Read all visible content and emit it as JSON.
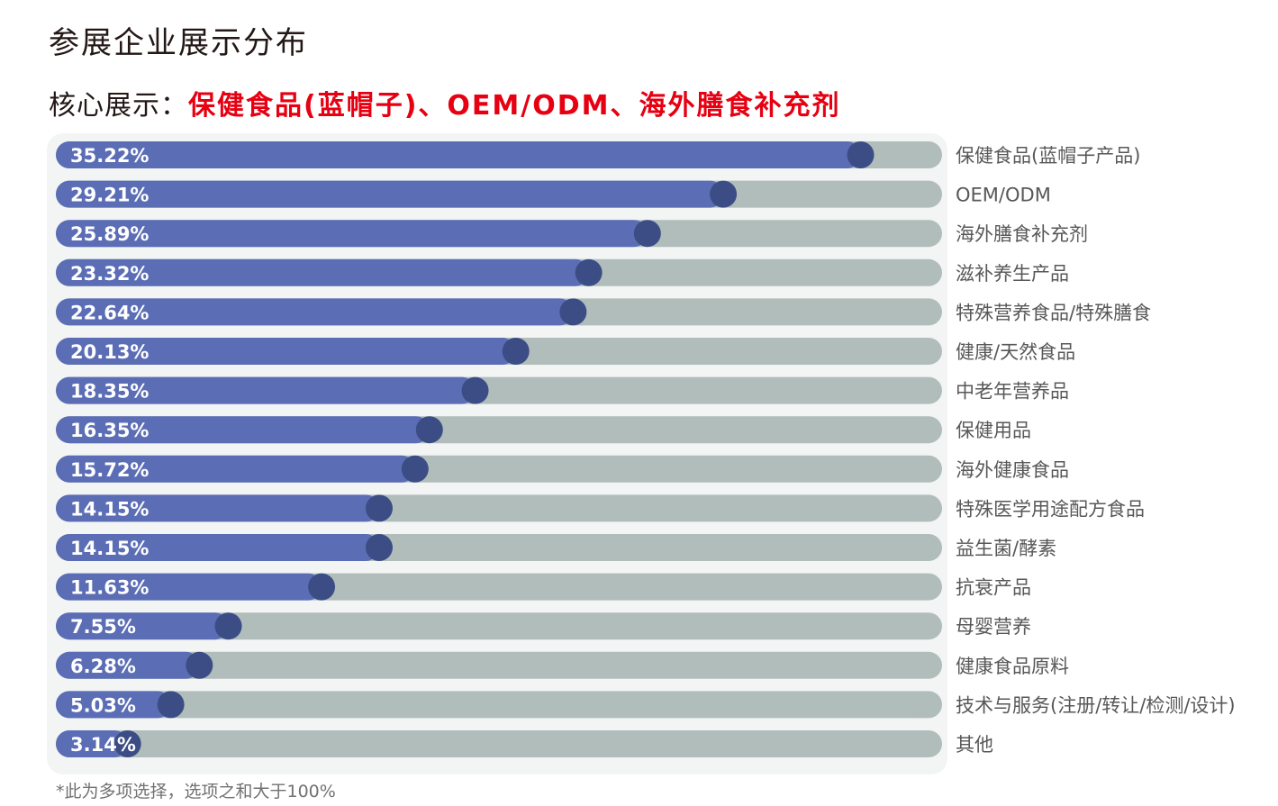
{
  "header": {
    "title": "参展企业展示分布",
    "core_label": "核心展示：",
    "core_items": "保健食品(蓝帽子)、OEM/ODM、海外膳食补充剂"
  },
  "footnote": "*此为多项选择，选项之和大于100%",
  "colors": {
    "bar_fill": "#5b6db5",
    "bar_track": "#b1bdbb",
    "knob": "#3c4d86",
    "highlight": "#e60012"
  },
  "chart_data": {
    "type": "bar",
    "orientation": "horizontal",
    "unit": "%",
    "xlim": [
      0,
      40
    ],
    "categories": [
      "保健食品(蓝帽子产品)",
      "OEM/ODM",
      "海外膳食补充剂",
      "滋补养生产品",
      "特殊营养食品/特殊膳食",
      "健康/天然食品",
      "中老年营养品",
      "保健用品",
      "海外健康食品",
      "特殊医学用途配方食品",
      "益生菌/酵素",
      "抗衰产品",
      "母婴营养",
      "健康食品原料",
      "技术与服务(注册/转让/检测/设计)",
      "其他"
    ],
    "values": [
      35.22,
      29.21,
      25.89,
      23.32,
      22.64,
      20.13,
      18.35,
      16.35,
      15.72,
      14.15,
      14.15,
      11.63,
      7.55,
      6.28,
      5.03,
      3.14
    ],
    "value_labels": [
      "35.22%",
      "29.21%",
      "25.89%",
      "23.32%",
      "22.64%",
      "20.13%",
      "18.35%",
      "16.35%",
      "15.72%",
      "14.15%",
      "14.15%",
      "11.63%",
      "7.55%",
      "6.28%",
      "5.03%",
      "3.14%"
    ]
  }
}
